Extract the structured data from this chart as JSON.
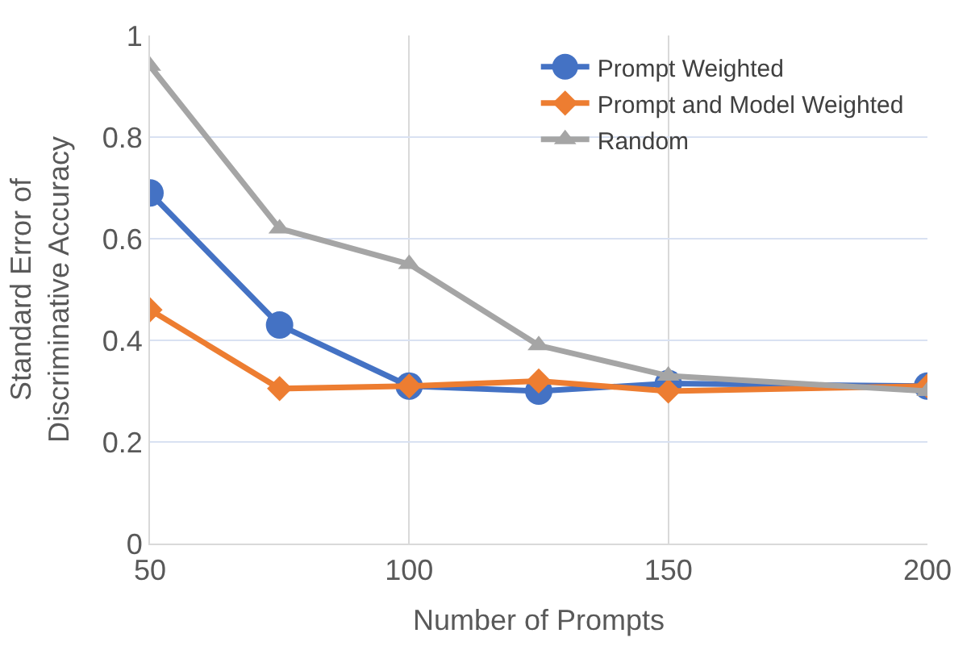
{
  "chart_data": {
    "type": "line",
    "xlabel": "Number of Prompts",
    "ylabel": "Standard Error of Discriminative Accuracy",
    "x": [
      50,
      75,
      100,
      125,
      150,
      200
    ],
    "series": [
      {
        "name": "Prompt Weighted",
        "color": "#4472c4",
        "marker": "circle",
        "values": [
          0.69,
          0.43,
          0.31,
          0.3,
          0.315,
          0.31
        ]
      },
      {
        "name": "Prompt and Model Weighted",
        "color": "#ed7d31",
        "marker": "diamond",
        "values": [
          0.46,
          0.305,
          0.31,
          0.32,
          0.3,
          0.31
        ]
      },
      {
        "name": "Random",
        "color": "#a5a5a5",
        "marker": "triangle",
        "values": [
          0.94,
          0.62,
          0.55,
          0.39,
          0.33,
          0.3
        ]
      }
    ],
    "xlim": [
      50,
      200
    ],
    "xticks": [
      50,
      100,
      150,
      200
    ],
    "ylim": [
      0,
      1
    ],
    "yticks": [
      0,
      0.2,
      0.4,
      0.6,
      0.8,
      1
    ],
    "grid": true,
    "legend": "top right"
  }
}
